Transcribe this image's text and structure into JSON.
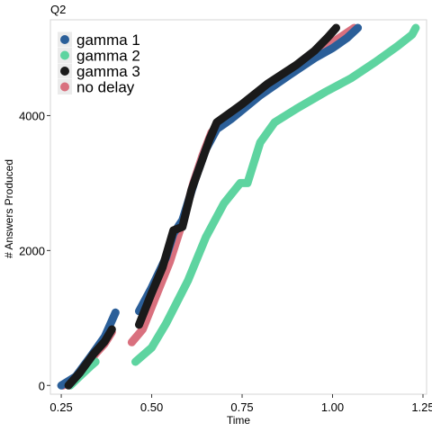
{
  "chart_data": {
    "type": "scatter",
    "title": "Q2",
    "xlabel": "Time",
    "ylabel": "# Answers Produced",
    "xlim": [
      0.22,
      1.26
    ],
    "ylim": [
      -130,
      5420
    ],
    "xticks": [
      0.25,
      0.5,
      0.75,
      1.0,
      1.25
    ],
    "xtick_labels": [
      "0.25",
      "0.50",
      "0.75",
      "1.00",
      "1.25"
    ],
    "yticks": [
      0,
      2000,
      4000
    ],
    "ytick_labels": [
      "0",
      "2000",
      "4000"
    ],
    "grid": false,
    "legend_position": "top-left",
    "series": [
      {
        "name": "no delay",
        "color": "#d9707e",
        "segments": [
          [
            [
              0.255,
              0
            ],
            [
              0.28,
              60
            ],
            [
              0.31,
              230
            ],
            [
              0.345,
              470
            ],
            [
              0.37,
              620
            ],
            [
              0.39,
              790
            ]
          ],
          [
            [
              0.445,
              640
            ],
            [
              0.475,
              830
            ],
            [
              0.51,
              1300
            ],
            [
              0.55,
              1830
            ],
            [
              0.59,
              2500
            ],
            [
              0.615,
              3000
            ],
            [
              0.64,
              3400
            ],
            [
              0.665,
              3750
            ],
            [
              0.69,
              3900
            ],
            [
              0.75,
              4120
            ],
            [
              0.82,
              4450
            ],
            [
              0.9,
              4700
            ],
            [
              0.96,
              4920
            ],
            [
              1.01,
              5120
            ],
            [
              1.06,
              5300
            ]
          ]
        ]
      },
      {
        "name": "gamma 1",
        "color": "#2b5f99",
        "segments": [
          [
            [
              0.25,
              0
            ],
            [
              0.29,
              130
            ],
            [
              0.33,
              420
            ],
            [
              0.37,
              720
            ],
            [
              0.4,
              1080
            ]
          ],
          [
            [
              0.465,
              1100
            ],
            [
              0.5,
              1450
            ],
            [
              0.54,
              1900
            ],
            [
              0.56,
              2250
            ],
            [
              0.585,
              2450
            ],
            [
              0.62,
              3050
            ],
            [
              0.65,
              3500
            ],
            [
              0.68,
              3800
            ],
            [
              0.72,
              3950
            ],
            [
              0.8,
              4300
            ],
            [
              0.88,
              4600
            ],
            [
              0.95,
              4850
            ],
            [
              1.0,
              5000
            ],
            [
              1.04,
              5150
            ],
            [
              1.07,
              5300
            ]
          ]
        ]
      },
      {
        "name": "gamma 2",
        "color": "#5ed4a0",
        "segments": [
          [
            [
              0.275,
              0
            ],
            [
              0.3,
              130
            ],
            [
              0.33,
              280
            ],
            [
              0.345,
              350
            ]
          ],
          [
            [
              0.455,
              350
            ],
            [
              0.5,
              560
            ],
            [
              0.54,
              920
            ],
            [
              0.6,
              1550
            ],
            [
              0.65,
              2200
            ],
            [
              0.7,
              2700
            ],
            [
              0.745,
              3000
            ],
            [
              0.765,
              3000
            ],
            [
              0.8,
              3600
            ],
            [
              0.84,
              3900
            ],
            [
              0.9,
              4100
            ],
            [
              0.98,
              4350
            ],
            [
              1.05,
              4550
            ],
            [
              1.12,
              4800
            ],
            [
              1.18,
              5030
            ],
            [
              1.22,
              5200
            ],
            [
              1.23,
              5300
            ]
          ]
        ]
      },
      {
        "name": "gamma 3",
        "color": "#1a1a1a",
        "segments": [
          [
            [
              0.27,
              0
            ],
            [
              0.3,
              180
            ],
            [
              0.34,
              470
            ],
            [
              0.37,
              650
            ],
            [
              0.39,
              830
            ]
          ],
          [
            [
              0.465,
              900
            ],
            [
              0.5,
              1370
            ],
            [
              0.53,
              1750
            ],
            [
              0.56,
              2300
            ],
            [
              0.585,
              2350
            ],
            [
              0.61,
              2900
            ],
            [
              0.64,
              3350
            ],
            [
              0.66,
              3650
            ],
            [
              0.68,
              3900
            ],
            [
              0.75,
              4170
            ],
            [
              0.82,
              4470
            ],
            [
              0.9,
              4750
            ],
            [
              0.95,
              4960
            ],
            [
              0.985,
              5150
            ],
            [
              1.01,
              5300
            ]
          ]
        ]
      }
    ],
    "legend_order": [
      "gamma 1",
      "gamma 2",
      "gamma 3",
      "no delay"
    ]
  }
}
